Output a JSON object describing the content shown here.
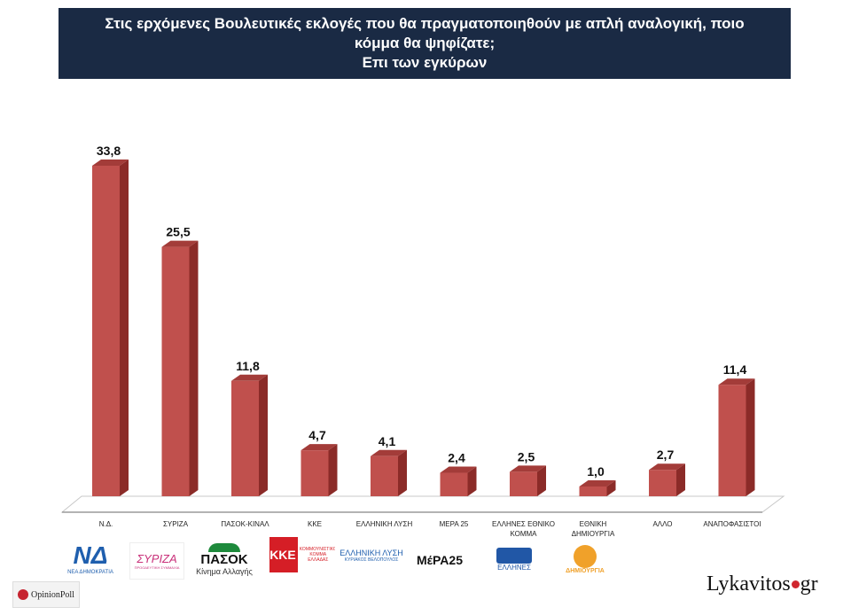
{
  "title_lines": [
    "Στις ερχόμενες Βουλευτικές εκλογές που θα πραγματοποιηθούν με απλή αναλογική, ποιο",
    "κόμμα θα ψηφίζατε;",
    "Επι των εγκύρων"
  ],
  "colors": {
    "bar_front": "#c0504d",
    "bar_side": "#8b2b28",
    "title_bg": "#1a2a44"
  },
  "chart_data": {
    "type": "bar",
    "categories": [
      "Ν.Δ.",
      "ΣΥΡΙΖΑ",
      "ΠΑΣΟΚ-ΚΙΝΑΛ",
      "ΚΚΕ",
      "ΕΛΛΗΝΙΚΗ ΛΥΣΗ",
      "ΜΕΡΑ 25",
      "ΕΛΛΗΝΕΣ ΕΘΝΙΚΟ ΚΟΜΜΑ",
      "ΕΘΝΙΚΗ ΔΗΜΙΟΥΡΓΙΑ",
      "ΑΛΛΟ",
      "ΑΝΑΠΟΦΑΣΙΣΤΟΙ"
    ],
    "category_lines": [
      [
        "Ν.Δ."
      ],
      [
        "ΣΥΡΙΖΑ"
      ],
      [
        "ΠΑΣΟΚ-ΚΙΝΑΛ"
      ],
      [
        "ΚΚΕ"
      ],
      [
        "ΕΛΛΗΝΙΚΗ ΛΥΣΗ"
      ],
      [
        "ΜΕΡΑ 25"
      ],
      [
        "ΕΛΛΗΝΕΣ ΕΘΝΙΚΟ",
        "ΚΟΜΜΑ"
      ],
      [
        "ΕΘΝΙΚΗ",
        "ΔΗΜΙΟΥΡΓΙΑ"
      ],
      [
        "ΑΛΛΟ"
      ],
      [
        "ΑΝΑΠΟΦΑΣΙΣΤΟΙ"
      ]
    ],
    "values": [
      33.8,
      25.5,
      11.8,
      4.7,
      4.1,
      2.4,
      2.5,
      1.0,
      2.7,
      11.4
    ],
    "value_labels": [
      "33,8",
      "25,5",
      "11,8",
      "4,7",
      "4,1",
      "2,4",
      "2,5",
      "1,0",
      "2,7",
      "11,4"
    ],
    "ylim": [
      0,
      36
    ],
    "grid": false,
    "legend": "none"
  },
  "logos": {
    "nd": {
      "name": "ΝΔ",
      "caption": "ΝΕΑ ΔΗΜΟΚΡΑΤΙΑ"
    },
    "syriza": {
      "name": "ΣΥΡΙΖΑ",
      "caption": "ΠΡΟΟΔΕΥΤΙΚΗ ΣΥΜΜΑΧΙΑ"
    },
    "pasok": {
      "name": "ΠΑΣΟΚ",
      "caption": "Κίνημα Αλλαγής"
    },
    "kke": {
      "name": "ΚΚΕ",
      "caption": "ΚΟΜΜΟΥΝΙΣΤΙΚΟ ΚΟΜΜΑ ΕΛΛΑΔΑΣ"
    },
    "el_lysi": {
      "name": "ΕΛΛΗΝΙΚΗ ΛΥΣΗ",
      "caption": "ΚΥΡΙΑΚΟΣ ΒΕΛΟΠΟΥΛΟΣ"
    },
    "mera25": {
      "name": "ΜέΡΑ25"
    },
    "ellines": {
      "name": "ΕΛΛΗΝΕΣ"
    },
    "ethniki_dim": {
      "name": "ΔΗΜΙΟΥΡΓΙΑ"
    }
  },
  "footer": {
    "pollster": "OpinionPoll",
    "brand_left": "Lykavitos",
    "brand_right": "gr"
  }
}
